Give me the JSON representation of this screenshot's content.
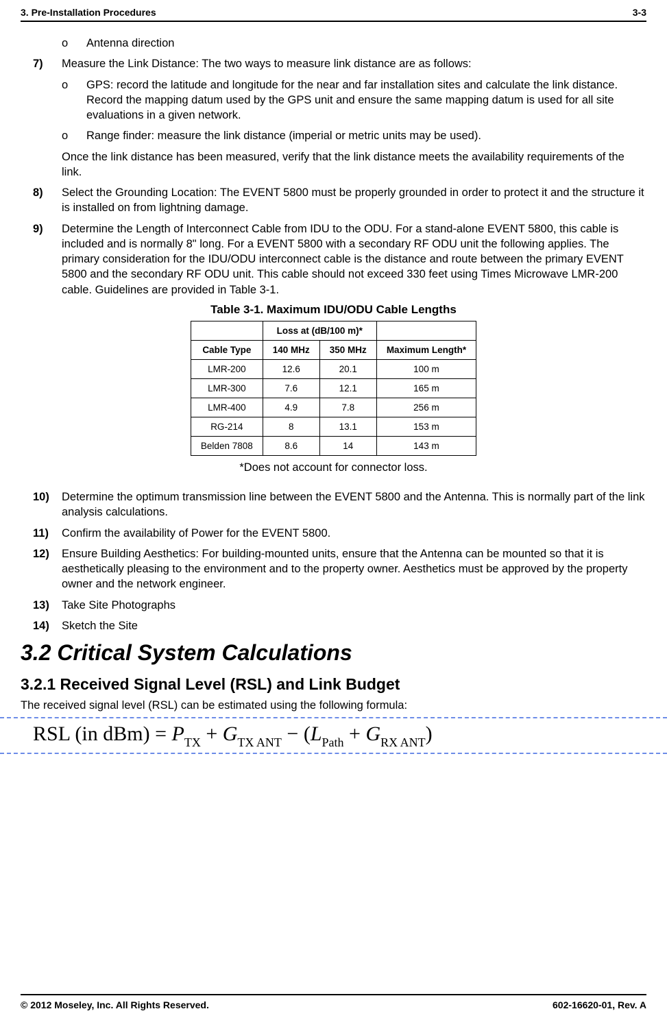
{
  "header": {
    "left": "3. Pre-Installation Procedures",
    "right": "3-3"
  },
  "items": {
    "sub_o_antenna": "Antenna direction",
    "n7_lead": "7)",
    "n7_text": "Measure the Link Distance: The two ways to measure link distance are as follows:",
    "sub_o_gps": "GPS: record the latitude and longitude for the near and far installation sites and calculate the link distance. Record the mapping datum used by the GPS unit and ensure the same mapping datum is used for all site evaluations in a given network.",
    "sub_o_range": "Range finder: measure the link distance (imperial or metric units may be used).",
    "n7_cont": "Once the link distance has been measured, verify that the link distance meets the availability requirements of the link.",
    "n8_lead": "8)",
    "n8_text": "Select the Grounding Location: The EVENT 5800 must be properly grounded in order to protect it and the structure it is installed on from lightning damage.",
    "n9_lead": "9)",
    "n9_text": "Determine the Length of Interconnect Cable from IDU to the ODU. For a stand-alone EVENT 5800, this cable is included and is normally 8\" long.  For a EVENT 5800 with a secondary RF ODU unit the following applies.  The primary consideration for the IDU/ODU interconnect cable is the distance and route between the primary EVENT 5800 and the secondary RF ODU unit. This cable should not exceed 330 feet using Times Microwave LMR-200 cable. Guidelines are provided in Table 3-1.",
    "n10_lead": "10)",
    "n10_text": "Determine the optimum transmission line between the EVENT 5800 and the Antenna. This is normally part of the link analysis calculations.",
    "n11_lead": "11)",
    "n11_text": "Confirm the availability of Power for the EVENT 5800.",
    "n12_lead": "12)",
    "n12_text": "Ensure Building Aesthetics: For building-mounted units, ensure that the Antenna can be mounted so that it is aesthetically pleasing to the environment and to the property owner. Aesthetics must be approved by the property owner and the network engineer.",
    "n13_lead": "13)",
    "n13_text": "Take Site Photographs",
    "n14_lead": "14)",
    "n14_text": "Sketch the Site"
  },
  "table": {
    "caption": "Table 3-1. Maximum IDU/ODU Cable Lengths",
    "loss_header": "Loss at (dB/100 m)*",
    "col_cable": "Cable Type",
    "col_140": "140 MHz",
    "col_350": "350 MHz",
    "col_max": "Maximum Length*",
    "rows": [
      {
        "cable": "LMR-200",
        "v140": "12.6",
        "v350": "20.1",
        "max": "100 m"
      },
      {
        "cable": "LMR-300",
        "v140": "7.6",
        "v350": "12.1",
        "max": "165 m"
      },
      {
        "cable": "LMR-400",
        "v140": "4.9",
        "v350": "7.8",
        "max": "256 m"
      },
      {
        "cable": "RG-214",
        "v140": "8",
        "v350": "13.1",
        "max": "153 m"
      },
      {
        "cable": "Belden 7808",
        "v140": "8.6",
        "v350": "14",
        "max": "143 m"
      }
    ],
    "note": "*Does not account for connector loss."
  },
  "sections": {
    "h2": "3.2  Critical System Calculations",
    "h3": "3.2.1  Received Signal Level (RSL) and Link Budget",
    "rsl_intro": "The received signal level (RSL) can be estimated using the following formula:"
  },
  "formula": {
    "lhs": "RSL (in dBm)  =  ",
    "p": "P",
    "p_sub": "TX",
    "plus1": " + ",
    "g1": "G",
    "g1_sub": "TX ANT",
    "minus": " − (",
    "l": "L",
    "l_sub": "Path",
    "plus2": " + ",
    "g2": "G",
    "g2_sub": "RX ANT",
    "close": ")"
  },
  "footer": {
    "left": "© 2012 Moseley, Inc.  All Rights Reserved.",
    "right": "602-16620-01, Rev. A"
  }
}
